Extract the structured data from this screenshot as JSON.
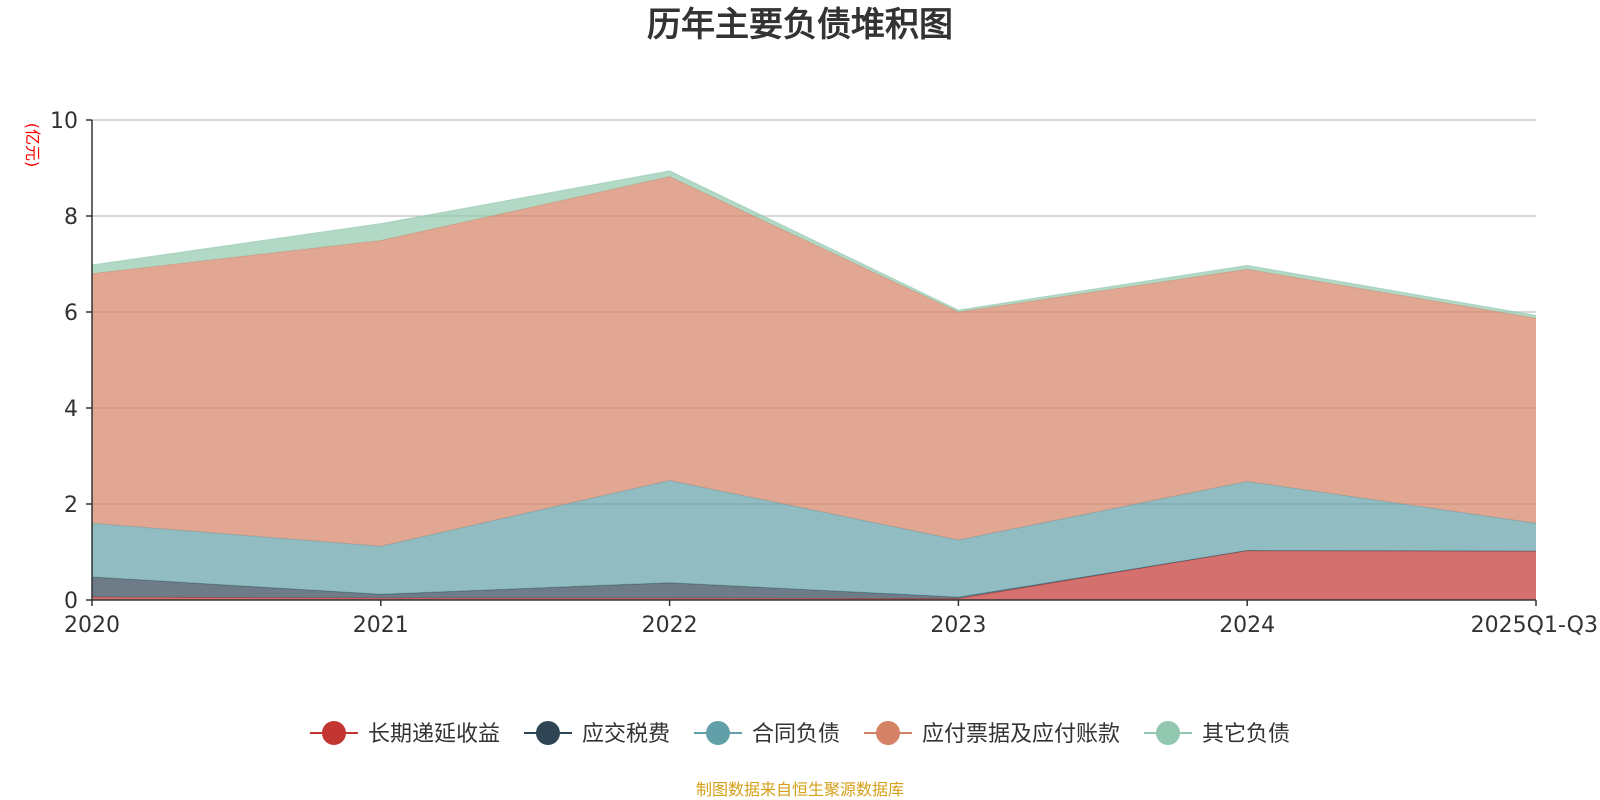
{
  "chart_data": {
    "type": "area",
    "stacked": true,
    "title": "历年主要负债堆积图",
    "unit_label": "(亿元)",
    "categories": [
      "2020",
      "2021",
      "2022",
      "2023",
      "2024",
      "2025Q1-Q3"
    ],
    "ylim": [
      0,
      10
    ],
    "yticks": [
      0,
      2,
      4,
      6,
      8,
      10
    ],
    "yticks_labels": [
      "0",
      "2",
      "4",
      "6",
      "8",
      "10"
    ],
    "grid": true,
    "legend_position": "bottom",
    "series": [
      {
        "name": "长期递延收益",
        "color": "#c23531",
        "values": [
          0.06,
          0.04,
          0.04,
          0.03,
          1.03,
          1.02
        ]
      },
      {
        "name": "应交税费",
        "color": "#2f4554",
        "values": [
          0.42,
          0.08,
          0.32,
          0.03,
          0.0,
          0.0
        ]
      },
      {
        "name": "合同负债",
        "color": "#61a0a8",
        "values": [
          1.12,
          1.0,
          2.13,
          1.19,
          1.44,
          0.58
        ]
      },
      {
        "name": "应付票据及应付账款",
        "color": "#d48265",
        "values": [
          5.2,
          6.37,
          6.33,
          4.75,
          4.42,
          4.27
        ]
      },
      {
        "name": "其它负债",
        "color": "#91c7ae",
        "values": [
          0.18,
          0.35,
          0.12,
          0.04,
          0.08,
          0.06
        ]
      }
    ]
  },
  "source_note": "制图数据来自恒生聚源数据库"
}
